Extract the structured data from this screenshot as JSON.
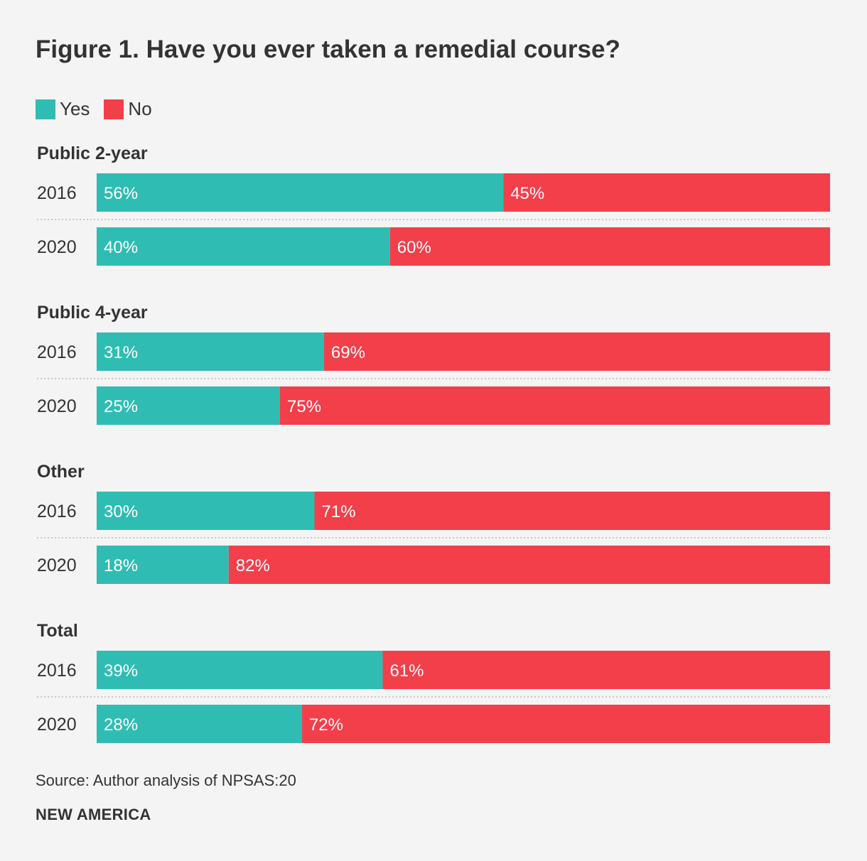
{
  "chart_data": {
    "type": "bar",
    "orientation": "horizontal",
    "stacked": true,
    "title": "Figure 1. Have you ever taken a remedial course?",
    "legend": [
      {
        "name": "Yes",
        "color": "#2fbdb3"
      },
      {
        "name": "No",
        "color": "#f23f4a"
      }
    ],
    "groups": [
      {
        "label": "Public 2-year",
        "rows": [
          {
            "year": "2016",
            "yes": 56,
            "no": 45,
            "yes_label": "56%",
            "no_label": "45%"
          },
          {
            "year": "2020",
            "yes": 40,
            "no": 60,
            "yes_label": "40%",
            "no_label": "60%"
          }
        ]
      },
      {
        "label": "Public 4-year",
        "rows": [
          {
            "year": "2016",
            "yes": 31,
            "no": 69,
            "yes_label": "31%",
            "no_label": "69%"
          },
          {
            "year": "2020",
            "yes": 25,
            "no": 75,
            "yes_label": "25%",
            "no_label": "75%"
          }
        ]
      },
      {
        "label": "Other",
        "rows": [
          {
            "year": "2016",
            "yes": 30,
            "no": 71,
            "yes_label": "30%",
            "no_label": "71%"
          },
          {
            "year": "2020",
            "yes": 18,
            "no": 82,
            "yes_label": "18%",
            "no_label": "82%"
          }
        ]
      },
      {
        "label": "Total",
        "rows": [
          {
            "year": "2016",
            "yes": 39,
            "no": 61,
            "yes_label": "39%",
            "no_label": "61%"
          },
          {
            "year": "2020",
            "yes": 28,
            "no": 72,
            "yes_label": "28%",
            "no_label": "72%"
          }
        ]
      }
    ],
    "xlim": [
      0,
      100
    ]
  },
  "source": "Source: Author analysis of NPSAS:20",
  "brand": "NEW AMERICA",
  "colors": {
    "yes": "#2fbdb3",
    "no": "#f23f4a",
    "text": "#333333",
    "background": "#f4f4f4"
  }
}
